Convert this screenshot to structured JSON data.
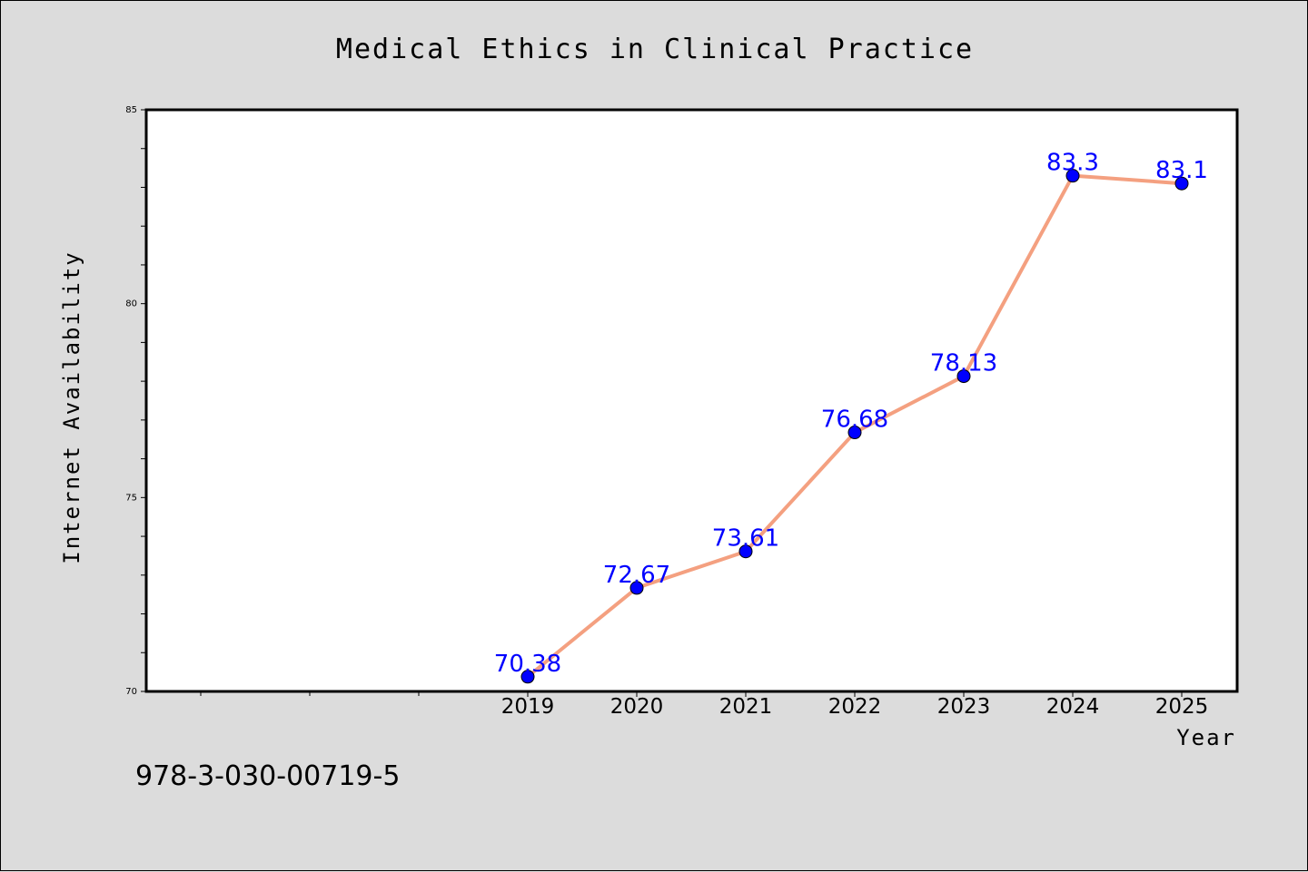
{
  "chart_data": {
    "type": "line",
    "title": "Medical Ethics in Clinical Practice",
    "xlabel": "Year",
    "ylabel": "Internet Availability",
    "x": [
      "2019",
      "2020",
      "2021",
      "2022",
      "2023",
      "2024",
      "2025"
    ],
    "series": [
      {
        "values": [
          70.38,
          72.67,
          73.61,
          76.68,
          78.13,
          83.3,
          83.1
        ],
        "labels": [
          "70.38",
          "72.67",
          "73.61",
          "76.68",
          "78.13",
          "83.3",
          "83.1"
        ]
      }
    ],
    "yticks": [
      "70",
      "75",
      "80",
      "85"
    ],
    "ylim": [
      70,
      85
    ],
    "grid": false,
    "legend": "none",
    "line_color": "#f4a080",
    "marker_color": "#0000ff"
  },
  "footer": {
    "isbn": "978-3-030-00719-5"
  }
}
